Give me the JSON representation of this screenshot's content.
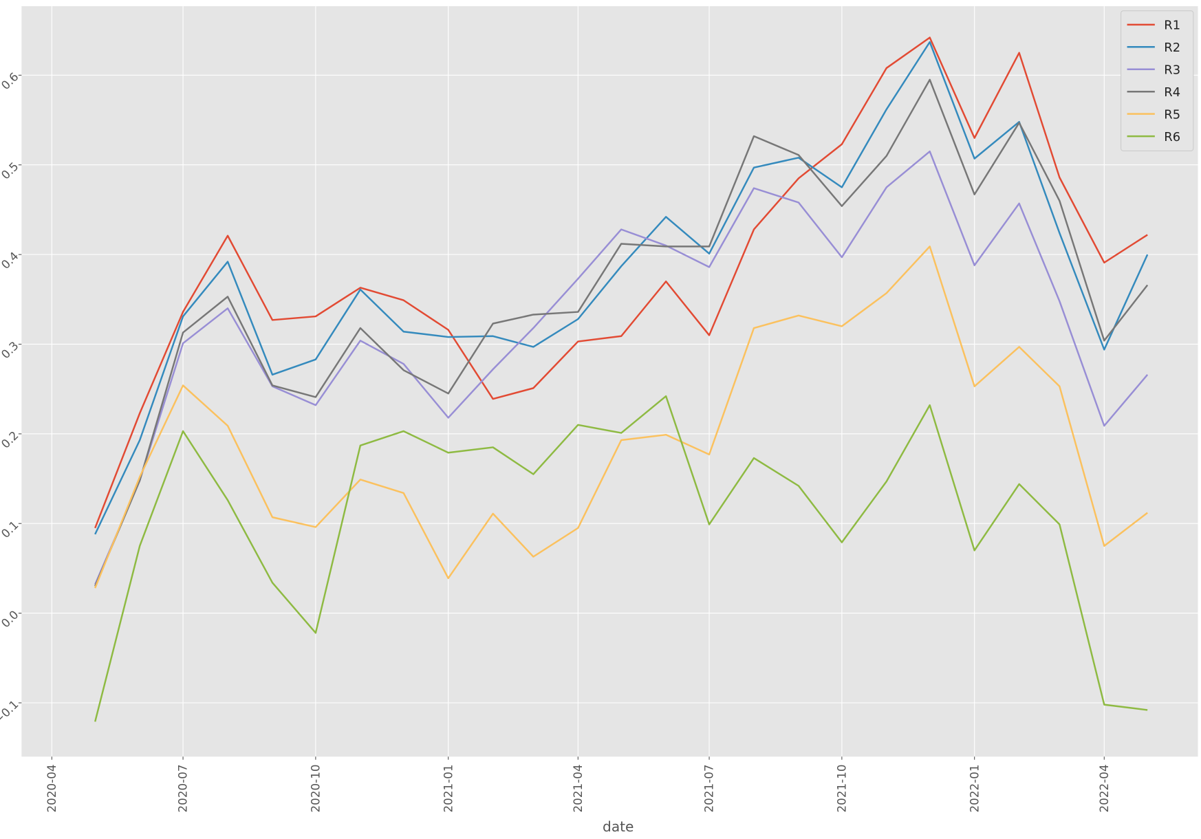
{
  "chart_data": {
    "type": "line",
    "xlabel": "date",
    "x": [
      "2020-05",
      "2020-06",
      "2020-07",
      "2020-08",
      "2020-09",
      "2020-10",
      "2020-11",
      "2020-12",
      "2021-01",
      "2021-02",
      "2021-03",
      "2021-04",
      "2021-05",
      "2021-06",
      "2021-07",
      "2021-08",
      "2021-09",
      "2021-10",
      "2021-11",
      "2021-12",
      "2022-01",
      "2022-02",
      "2022-03",
      "2022-04",
      "2022-05"
    ],
    "series": [
      {
        "name": "R1",
        "color": "#E24A33",
        "values": [
          0.095,
          0.223,
          0.336,
          0.421,
          0.327,
          0.331,
          0.363,
          0.349,
          0.316,
          0.239,
          0.251,
          0.303,
          0.309,
          0.37,
          0.31,
          0.428,
          0.485,
          0.523,
          0.608,
          0.642,
          0.53,
          0.625,
          0.486,
          0.391,
          0.422
        ]
      },
      {
        "name": "R2",
        "color": "#348ABD",
        "values": [
          0.088,
          0.193,
          0.331,
          0.392,
          0.266,
          0.283,
          0.361,
          0.314,
          0.308,
          0.309,
          0.297,
          0.328,
          0.387,
          0.442,
          0.401,
          0.497,
          0.508,
          0.475,
          0.562,
          0.637,
          0.507,
          0.548,
          0.424,
          0.294,
          0.4
        ]
      },
      {
        "name": "R3",
        "color": "#988ED5",
        "values": [
          0.032,
          0.148,
          0.301,
          0.34,
          0.253,
          0.232,
          0.304,
          0.278,
          0.218,
          0.272,
          0.318,
          0.373,
          0.428,
          0.41,
          0.386,
          0.474,
          0.458,
          0.397,
          0.475,
          0.515,
          0.388,
          0.457,
          0.348,
          0.209,
          0.266
        ]
      },
      {
        "name": "R4",
        "color": "#777777",
        "values": [
          0.03,
          0.148,
          0.313,
          0.353,
          0.254,
          0.241,
          0.318,
          0.271,
          0.245,
          0.323,
          0.333,
          0.336,
          0.412,
          0.409,
          0.409,
          0.532,
          0.511,
          0.454,
          0.51,
          0.595,
          0.467,
          0.547,
          0.46,
          0.304,
          0.366
        ]
      },
      {
        "name": "R5",
        "color": "#FBC15E",
        "values": [
          0.028,
          0.152,
          0.254,
          0.209,
          0.107,
          0.096,
          0.149,
          0.134,
          0.039,
          0.111,
          0.063,
          0.095,
          0.193,
          0.199,
          0.177,
          0.318,
          0.332,
          0.32,
          0.357,
          0.409,
          0.253,
          0.297,
          0.253,
          0.075,
          0.112
        ]
      },
      {
        "name": "R6",
        "color": "#8EBA42",
        "values": [
          -0.121,
          0.075,
          0.203,
          0.126,
          0.034,
          -0.022,
          0.187,
          0.203,
          0.179,
          0.185,
          0.155,
          0.21,
          0.201,
          0.242,
          0.099,
          0.173,
          0.142,
          0.079,
          0.147,
          0.232,
          0.07,
          0.144,
          0.099,
          -0.102,
          -0.108
        ]
      }
    ],
    "xlim": [
      "2020-03-11",
      "2022-06-05"
    ],
    "xticks": [
      "2020-04",
      "2020-07",
      "2020-10",
      "2021-01",
      "2021-04",
      "2021-07",
      "2021-10",
      "2022-01",
      "2022-04"
    ],
    "ylim": [
      -0.16,
      0.677
    ],
    "yticks": [
      {
        "value": -0.1,
        "label": "−0.1"
      },
      {
        "value": 0,
        "label": "0.0"
      },
      0.1,
      0.2,
      0.3,
      0.4,
      0.5,
      0.6
    ],
    "grid": true,
    "legend": "upper right"
  }
}
